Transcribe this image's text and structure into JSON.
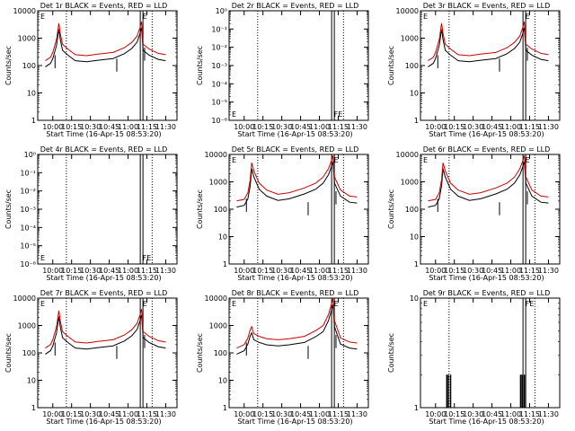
{
  "figure": {
    "xticks": [
      "10:00",
      "10:15",
      "10:30",
      "10:45",
      "11:00",
      "11:15",
      "11:30"
    ],
    "xlabel": "Start Time (16-Apr-15 08:53:20)",
    "ylabel": "Counts/sec",
    "colors": {
      "events": "#000000",
      "lld": "#cc0000",
      "axis": "#000000"
    }
  },
  "chart_data": [
    {
      "type": "line",
      "title": "Det 1r BLACK = Events, RED = LLD",
      "yscale": "log",
      "ylim": [
        1,
        10000
      ],
      "yticks": [
        "1",
        "10",
        "100",
        "1000",
        "10000"
      ],
      "flags": [
        "E",
        "E"
      ],
      "xlabel": "Start Time (16-Apr-15 08:53:20)",
      "ylabel": "Counts/sec",
      "series": [
        {
          "name": "Events",
          "color": "#000000",
          "profile": "a",
          "scale": 0.6
        },
        {
          "name": "LLD",
          "color": "#cc0000",
          "profile": "a",
          "scale": 1
        }
      ]
    },
    {
      "type": "line",
      "title": "Det 2r BLACK = Events, RED = LLD",
      "yscale": "log",
      "ylim": [
        1e-06,
        1
      ],
      "yticks": [
        "10⁰",
        "10⁻¹",
        "10⁻²",
        "10⁻³",
        "10⁻⁴",
        "10⁻⁵",
        "10⁻⁶"
      ],
      "flags": [
        "E",
        "FE"
      ],
      "xlabel": "Start Time (16-Apr-15 08:53:20)",
      "ylabel": "Counts/sec",
      "series": []
    },
    {
      "type": "line",
      "title": "Det 3r BLACK = Events, RED = LLD",
      "yscale": "log",
      "ylim": [
        1,
        10000
      ],
      "yticks": [
        "1",
        "10",
        "100",
        "1000",
        "10000"
      ],
      "flags": [
        "E",
        "E"
      ],
      "xlabel": "Start Time (16-Apr-15 08:53:20)",
      "ylabel": "Counts/sec",
      "series": [
        {
          "name": "Events",
          "color": "#000000",
          "profile": "a",
          "scale": 0.6
        },
        {
          "name": "LLD",
          "color": "#cc0000",
          "profile": "a",
          "scale": 1
        }
      ]
    },
    {
      "type": "line",
      "title": "Det 4r BLACK = Events, RED = LLD",
      "yscale": "log",
      "ylim": [
        1e-06,
        1
      ],
      "yticks": [
        "10⁰",
        "10⁻¹",
        "10⁻²",
        "10⁻³",
        "10⁻⁴",
        "10⁻⁵",
        "10⁻⁶"
      ],
      "flags": [
        "E",
        "FE"
      ],
      "xlabel": "Start Time (16-Apr-15 08:53:20)",
      "ylabel": "Counts/sec",
      "series": []
    },
    {
      "type": "line",
      "title": "Det 5r BLACK = Events, RED = LLD",
      "yscale": "log",
      "ylim": [
        1,
        10000
      ],
      "yticks": [
        "1",
        "10",
        "100",
        "1000",
        "10000"
      ],
      "flags": [
        "E",
        "E"
      ],
      "xlabel": "Start Time (16-Apr-15 08:53:20)",
      "ylabel": "Counts/sec",
      "series": [
        {
          "name": "Events",
          "color": "#000000",
          "profile": "b",
          "scale": 0.6
        },
        {
          "name": "LLD",
          "color": "#cc0000",
          "profile": "b",
          "scale": 1
        }
      ]
    },
    {
      "type": "line",
      "title": "Det 6r BLACK = Events, RED = LLD",
      "yscale": "log",
      "ylim": [
        1,
        10000
      ],
      "yticks": [
        "1",
        "10",
        "100",
        "1000",
        "10000"
      ],
      "flags": [
        "E",
        "E"
      ],
      "xlabel": "Start Time (16-Apr-15 08:53:20)",
      "ylabel": "Counts/sec",
      "series": [
        {
          "name": "Events",
          "color": "#000000",
          "profile": "b",
          "scale": 0.6
        },
        {
          "name": "LLD",
          "color": "#cc0000",
          "profile": "b",
          "scale": 1
        }
      ]
    },
    {
      "type": "line",
      "title": "Det 7r BLACK = Events, RED = LLD",
      "yscale": "log",
      "ylim": [
        1,
        10000
      ],
      "yticks": [
        "1",
        "10",
        "100",
        "1000",
        "10000"
      ],
      "flags": [
        "E",
        "E"
      ],
      "xlabel": "Start Time (16-Apr-15 08:53:20)",
      "ylabel": "Counts/sec",
      "series": [
        {
          "name": "Events",
          "color": "#000000",
          "profile": "a",
          "scale": 0.6
        },
        {
          "name": "LLD",
          "color": "#cc0000",
          "profile": "a",
          "scale": 1
        }
      ]
    },
    {
      "type": "line",
      "title": "Det 8r BLACK = Events, RED = LLD",
      "yscale": "log",
      "ylim": [
        1,
        10000
      ],
      "yticks": [
        "1",
        "10",
        "100",
        "1000",
        "10000"
      ],
      "flags": [
        "E",
        "E"
      ],
      "xlabel": "Start Time (16-Apr-15 08:53:20)",
      "ylabel": "Counts/sec",
      "series": [
        {
          "name": "Events",
          "color": "#000000",
          "profile": "c",
          "scale": 0.6
        },
        {
          "name": "LLD",
          "color": "#cc0000",
          "profile": "c",
          "scale": 1
        }
      ]
    },
    {
      "type": "bar",
      "title": "Det 9r BLACK = Events, RED = LLD",
      "yscale": "log",
      "ylim": [
        1,
        10
      ],
      "yticks": [
        "1",
        "10"
      ],
      "flags": [
        "E",
        "FE"
      ],
      "xlabel": "Start Time (16-Apr-15 08:53:20)",
      "ylabel": "Counts/sec",
      "spikes": [
        {
          "t": 10.15,
          "v": 2
        },
        {
          "t": 10.17,
          "v": 2
        },
        {
          "t": 10.2,
          "v": 2
        },
        {
          "t": 11.13,
          "v": 2
        },
        {
          "t": 11.15,
          "v": 2
        },
        {
          "t": 11.18,
          "v": 2
        }
      ]
    }
  ],
  "profiles": {
    "a": [
      [
        9.9,
        150
      ],
      [
        9.97,
        200
      ],
      [
        10.0,
        300
      ],
      [
        10.05,
        900
      ],
      [
        10.08,
        3500
      ],
      [
        10.1,
        1500
      ],
      [
        10.13,
        600
      ],
      [
        10.2,
        400
      ],
      [
        10.3,
        250
      ],
      [
        10.45,
        230
      ],
      [
        10.6,
        260
      ],
      [
        10.8,
        300
      ],
      [
        10.95,
        450
      ],
      [
        11.05,
        700
      ],
      [
        11.12,
        1200
      ],
      [
        11.16,
        2500
      ],
      [
        11.18,
        4000
      ],
      [
        11.2,
        600
      ],
      [
        11.28,
        400
      ],
      [
        11.4,
        280
      ],
      [
        11.5,
        250
      ]
    ],
    "b": [
      [
        9.9,
        200
      ],
      [
        10.0,
        230
      ],
      [
        10.05,
        400
      ],
      [
        10.08,
        1200
      ],
      [
        10.1,
        5000
      ],
      [
        10.13,
        2500
      ],
      [
        10.2,
        900
      ],
      [
        10.3,
        500
      ],
      [
        10.45,
        350
      ],
      [
        10.6,
        400
      ],
      [
        10.8,
        600
      ],
      [
        10.95,
        900
      ],
      [
        11.05,
        1500
      ],
      [
        11.12,
        3000
      ],
      [
        11.15,
        5000
      ],
      [
        11.18,
        9000
      ],
      [
        11.2,
        1500
      ],
      [
        11.28,
        500
      ],
      [
        11.4,
        300
      ],
      [
        11.5,
        280
      ]
    ],
    "c": [
      [
        9.9,
        150
      ],
      [
        10.0,
        200
      ],
      [
        10.05,
        350
      ],
      [
        10.08,
        700
      ],
      [
        10.1,
        900
      ],
      [
        10.13,
        500
      ],
      [
        10.2,
        400
      ],
      [
        10.3,
        330
      ],
      [
        10.45,
        300
      ],
      [
        10.6,
        330
      ],
      [
        10.8,
        400
      ],
      [
        10.95,
        650
      ],
      [
        11.05,
        1000
      ],
      [
        11.12,
        2500
      ],
      [
        11.16,
        6000
      ],
      [
        11.18,
        9500
      ],
      [
        11.2,
        1500
      ],
      [
        11.28,
        350
      ],
      [
        11.4,
        250
      ],
      [
        11.5,
        230
      ]
    ]
  }
}
